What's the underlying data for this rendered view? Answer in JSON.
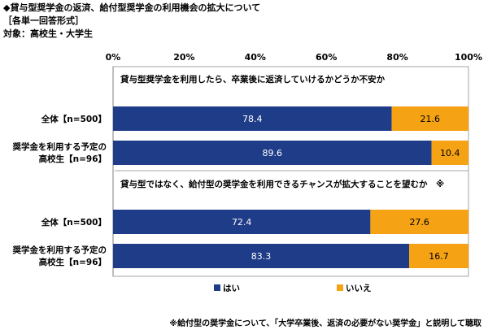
{
  "header": {
    "title": "◆貸与型奨学金の返済、給付型奨学金の利用機会の拡大について",
    "format": "［各単一回答形式］",
    "target": "対象：高校生・大学生"
  },
  "note": "※給付型の奨学金について、「大学卒業後、返済の必要がない奨学金」と説明して聴取",
  "colors": {
    "yes": "#1f3c88",
    "no": "#f5a214",
    "yes_text": "#ffffff",
    "no_text": "#000000"
  },
  "chart_data": {
    "type": "bar",
    "orientation": "horizontal",
    "stacked": true,
    "xlim": [
      0,
      100
    ],
    "ticks": [
      "0%",
      "20%",
      "40%",
      "60%",
      "80%",
      "100%"
    ],
    "legend_position": "bottom",
    "series_names": [
      "はい",
      "いいえ"
    ],
    "groups": [
      {
        "question": "貸与型奨学金を利用したら、卒業後に返済していけるかどうか不安か",
        "rows": [
          {
            "label": [
              "全体【n=500】"
            ],
            "values": [
              78.4,
              21.6
            ]
          },
          {
            "label": [
              "奨学金を利用する予定の",
              "高校生【n=96】"
            ],
            "values": [
              89.6,
              10.4
            ]
          }
        ]
      },
      {
        "question": "貸与型ではなく、給付型の奨学金を利用できるチャンスが拡大することを望むか　※",
        "rows": [
          {
            "label": [
              "全体【n=500】"
            ],
            "values": [
              72.4,
              27.6
            ]
          },
          {
            "label": [
              "奨学金を利用する予定の",
              "高校生【n=96】"
            ],
            "values": [
              83.3,
              16.7
            ]
          }
        ]
      }
    ]
  }
}
